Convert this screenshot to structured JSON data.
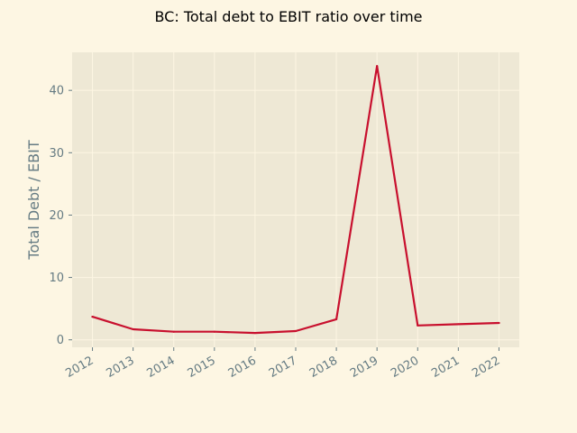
{
  "chart_data": {
    "type": "line",
    "title": "BC: Total debt to EBIT ratio over time",
    "xlabel": "",
    "ylabel": "Total Debt / EBIT",
    "x": [
      "2012",
      "2013",
      "2014",
      "2015",
      "2016",
      "2017",
      "2018",
      "2019",
      "2020",
      "2021",
      "2022"
    ],
    "series": [
      {
        "values": [
          3.7,
          1.7,
          1.3,
          1.3,
          1.1,
          1.4,
          3.3,
          43.9,
          2.3,
          2.5,
          2.7
        ]
      }
    ],
    "yticks": [
      0,
      10,
      20,
      30,
      40
    ],
    "ylim": [
      -1.2,
      46.1
    ],
    "grid": true,
    "x_tick_rotation": "30 degrees"
  },
  "colors": {
    "figure_background": "#fdf6e3",
    "plot_background": "#eee8d5",
    "grid": "#fdf6e3",
    "line": "#c8102e",
    "tick_text": "#657b83"
  }
}
